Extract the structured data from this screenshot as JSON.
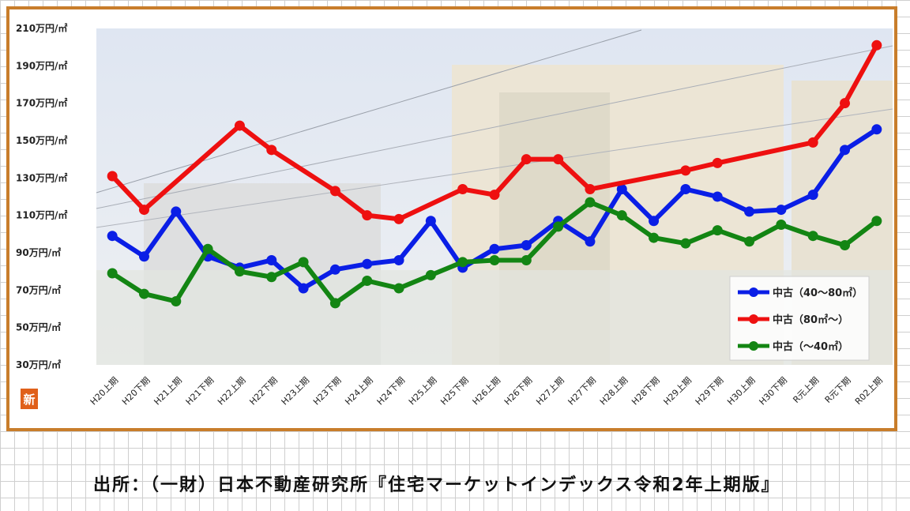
{
  "chart_data": {
    "type": "line",
    "categories": [
      "H20上期",
      "H20下期",
      "H21上期",
      "H21下期",
      "H22上期",
      "H22下期",
      "H23上期",
      "H23下期",
      "H24上期",
      "H24下期",
      "H25上期",
      "H25下期",
      "H26上期",
      "H26下期",
      "H27上期",
      "H27下期",
      "H28上期",
      "H28下期",
      "H29上期",
      "H29下期",
      "H30上期",
      "H30下期",
      "R元上期",
      "R元下期",
      "R02上期"
    ],
    "y_tick_labels": [
      "210万円/㎡",
      "190万円/㎡",
      "170万円/㎡",
      "150万円/㎡",
      "130万円/㎡",
      "110万円/㎡",
      "90万円/㎡",
      "70万円/㎡",
      "50万円/㎡",
      "30万円/㎡"
    ],
    "ylim": [
      30,
      210
    ],
    "legend_position": "bottom-right",
    "badge_label": "新",
    "series": [
      {
        "name": "中古（40～80㎡）",
        "color": "#0a1ee6",
        "values": [
          99,
          88,
          112,
          88,
          82,
          86,
          71,
          81,
          84,
          86,
          107,
          82,
          92,
          94,
          107,
          96,
          124,
          107,
          124,
          120,
          112,
          113,
          121,
          145,
          156
        ]
      },
      {
        "name": "中古（80㎡～）",
        "color": "#ee1010",
        "values": [
          131,
          113,
          null,
          null,
          158,
          145,
          null,
          123,
          110,
          108,
          null,
          124,
          121,
          140,
          140,
          124,
          null,
          null,
          134,
          138,
          null,
          null,
          149,
          170,
          201
        ]
      },
      {
        "name": "中古（～40㎡）",
        "color": "#138513",
        "values": [
          79,
          68,
          64,
          92,
          80,
          77,
          85,
          63,
          75,
          71,
          78,
          85,
          86,
          86,
          104,
          117,
          110,
          98,
          95,
          102,
          96,
          105,
          99,
          94,
          107
        ]
      }
    ]
  },
  "source_text": "出所：（一財）日本不動産研究所『住宅マーケットインデックス令和2年上期版』"
}
